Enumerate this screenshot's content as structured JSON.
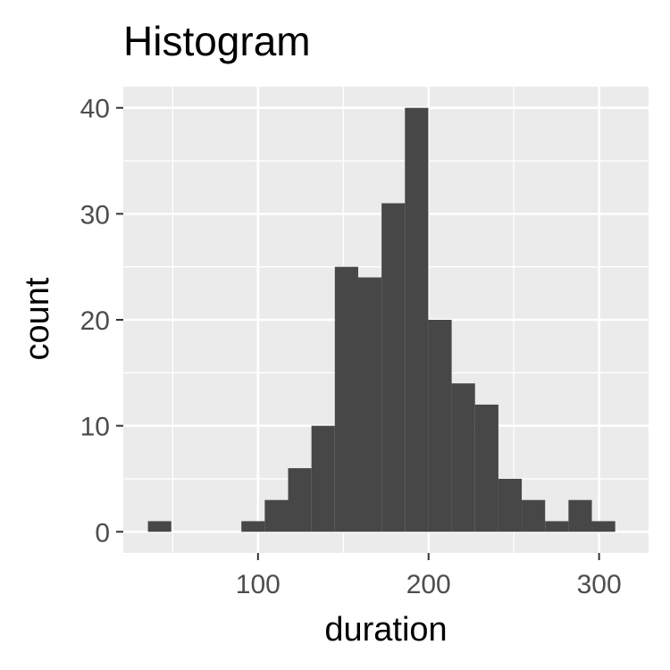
{
  "chart_data": {
    "type": "bar",
    "title": "Histogram",
    "xlabel": "duration",
    "ylabel": "count",
    "bin_width": 13.7,
    "bins": [
      {
        "x": 42.3,
        "count": 1
      },
      {
        "x": 56.0,
        "count": 0
      },
      {
        "x": 69.7,
        "count": 0
      },
      {
        "x": 83.4,
        "count": 0
      },
      {
        "x": 97.1,
        "count": 1
      },
      {
        "x": 110.8,
        "count": 3
      },
      {
        "x": 124.5,
        "count": 6
      },
      {
        "x": 138.2,
        "count": 10
      },
      {
        "x": 151.9,
        "count": 25
      },
      {
        "x": 165.6,
        "count": 24
      },
      {
        "x": 179.3,
        "count": 31
      },
      {
        "x": 193.0,
        "count": 40
      },
      {
        "x": 206.7,
        "count": 20
      },
      {
        "x": 220.4,
        "count": 14
      },
      {
        "x": 234.1,
        "count": 12
      },
      {
        "x": 247.8,
        "count": 5
      },
      {
        "x": 261.5,
        "count": 3
      },
      {
        "x": 275.2,
        "count": 1
      },
      {
        "x": 288.9,
        "count": 3
      },
      {
        "x": 302.6,
        "count": 1
      }
    ],
    "xlim": [
      21,
      329
    ],
    "ylim": [
      -2,
      42
    ],
    "x_ticks": [
      100,
      200,
      300
    ],
    "x_tick_labels": [
      "100",
      "200",
      "300"
    ],
    "x_minor_ticks": [
      50,
      150,
      250
    ],
    "y_ticks": [
      0,
      10,
      20,
      30,
      40
    ],
    "y_tick_labels": [
      "0",
      "10",
      "20",
      "30",
      "40"
    ],
    "y_minor_ticks": [
      5,
      15,
      25,
      35
    ],
    "grid": true,
    "colors": {
      "panel_background": "#ebebeb",
      "grid_line": "#ffffff",
      "bar_fill": "#474747",
      "tick_text": "#4d4d4d",
      "tick_mark": "#333333"
    }
  }
}
